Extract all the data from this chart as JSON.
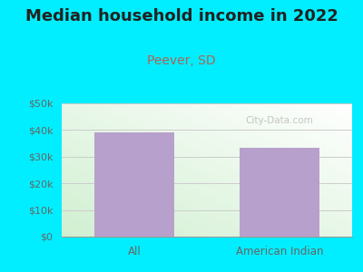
{
  "title": "Median household income in 2022",
  "subtitle": "Peever, SD",
  "categories": [
    "All",
    "American Indian"
  ],
  "values": [
    39000,
    33500
  ],
  "bar_color": "#b8a0cc",
  "title_fontsize": 13,
  "title_color": "#222222",
  "subtitle_fontsize": 10,
  "subtitle_color": "#aa6655",
  "tick_label_color": "#666666",
  "background_outer": "#00eeff",
  "ylim": [
    0,
    50000
  ],
  "yticks": [
    0,
    10000,
    20000,
    30000,
    40000,
    50000
  ],
  "ytick_labels": [
    "$0",
    "$10k",
    "$20k",
    "$30k",
    "$40k",
    "$50k"
  ],
  "watermark": "City-Data.com",
  "grid_color": "#cccccc"
}
